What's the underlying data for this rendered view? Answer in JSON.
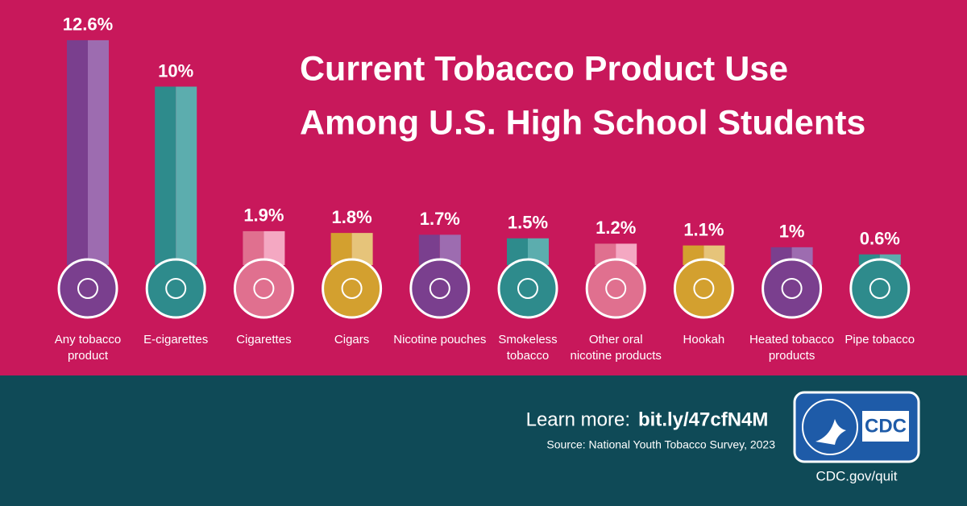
{
  "chart_data": {
    "type": "bar",
    "title": [
      "Current Tobacco Product Use",
      "Among U.S. High School Students"
    ],
    "categories": [
      "Any tobacco product",
      "E-cigarettes",
      "Cigarettes",
      "Cigars",
      "Nicotine pouches",
      "Smokeless tobacco",
      "Other oral nicotine products",
      "Hookah",
      "Heated tobacco products",
      "Pipe tobacco"
    ],
    "values": [
      12.6,
      10,
      1.9,
      1.8,
      1.7,
      1.5,
      1.2,
      1.1,
      1,
      0.6
    ],
    "value_labels": [
      "12.6%",
      "10%",
      "1.9%",
      "1.8%",
      "1.7%",
      "1.5%",
      "1.2%",
      "1.1%",
      "1%",
      "0.6%"
    ],
    "colors": [
      "#7a3f8e",
      "#2e8b8c",
      "#e0708f",
      "#d3a02f",
      "#7a3f8e",
      "#2e8b8c",
      "#e0708f",
      "#d3a02f",
      "#7a3f8e",
      "#2e8b8c"
    ],
    "light_colors": [
      "#9d6cb0",
      "#5cadae",
      "#f4a8c2",
      "#e6c47a",
      "#9d6cb0",
      "#5cadae",
      "#f4a8c2",
      "#e6c47a",
      "#9d6cb0",
      "#5cadae"
    ]
  },
  "footer": {
    "learn_more": "Learn more:",
    "link": "bit.ly/47cfN4M",
    "source": "Source: National Youth Tobacco Survey, 2023",
    "logo": "CDC",
    "site": "CDC.gov/quit"
  }
}
